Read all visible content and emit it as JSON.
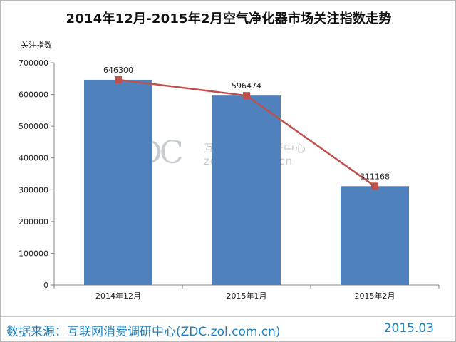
{
  "title": "2014年12月-2015年2月空气净化器市场关注指数走势",
  "footer": {
    "source": "数据来源：互联网消费调研中心(ZDC.zol.com.cn)",
    "date": "2015.03"
  },
  "watermark": {
    "logo": "ZDC",
    "name": "互联网消费调研中心",
    "url": "zdc.zol.com.cn"
  },
  "colors": {
    "bar": "#4f81bd",
    "line": "#c0504d",
    "axis": "#878787",
    "footer_text": "#1f7fbf"
  },
  "chart_data": {
    "type": "bar",
    "categories": [
      "2014年12月",
      "2015年1月",
      "2015年2月"
    ],
    "values": [
      646300,
      596474,
      311168
    ],
    "data_labels": [
      "646300",
      "596474",
      "311168"
    ],
    "line_overlay": {
      "values": [
        646300,
        596474,
        311168
      ]
    },
    "ylabel": "关注指数",
    "xlabel": "",
    "ylim": [
      0,
      700000
    ],
    "yticks": [
      "0",
      "100000",
      "200000",
      "300000",
      "400000",
      "500000",
      "600000",
      "700000"
    ],
    "grid": false
  }
}
